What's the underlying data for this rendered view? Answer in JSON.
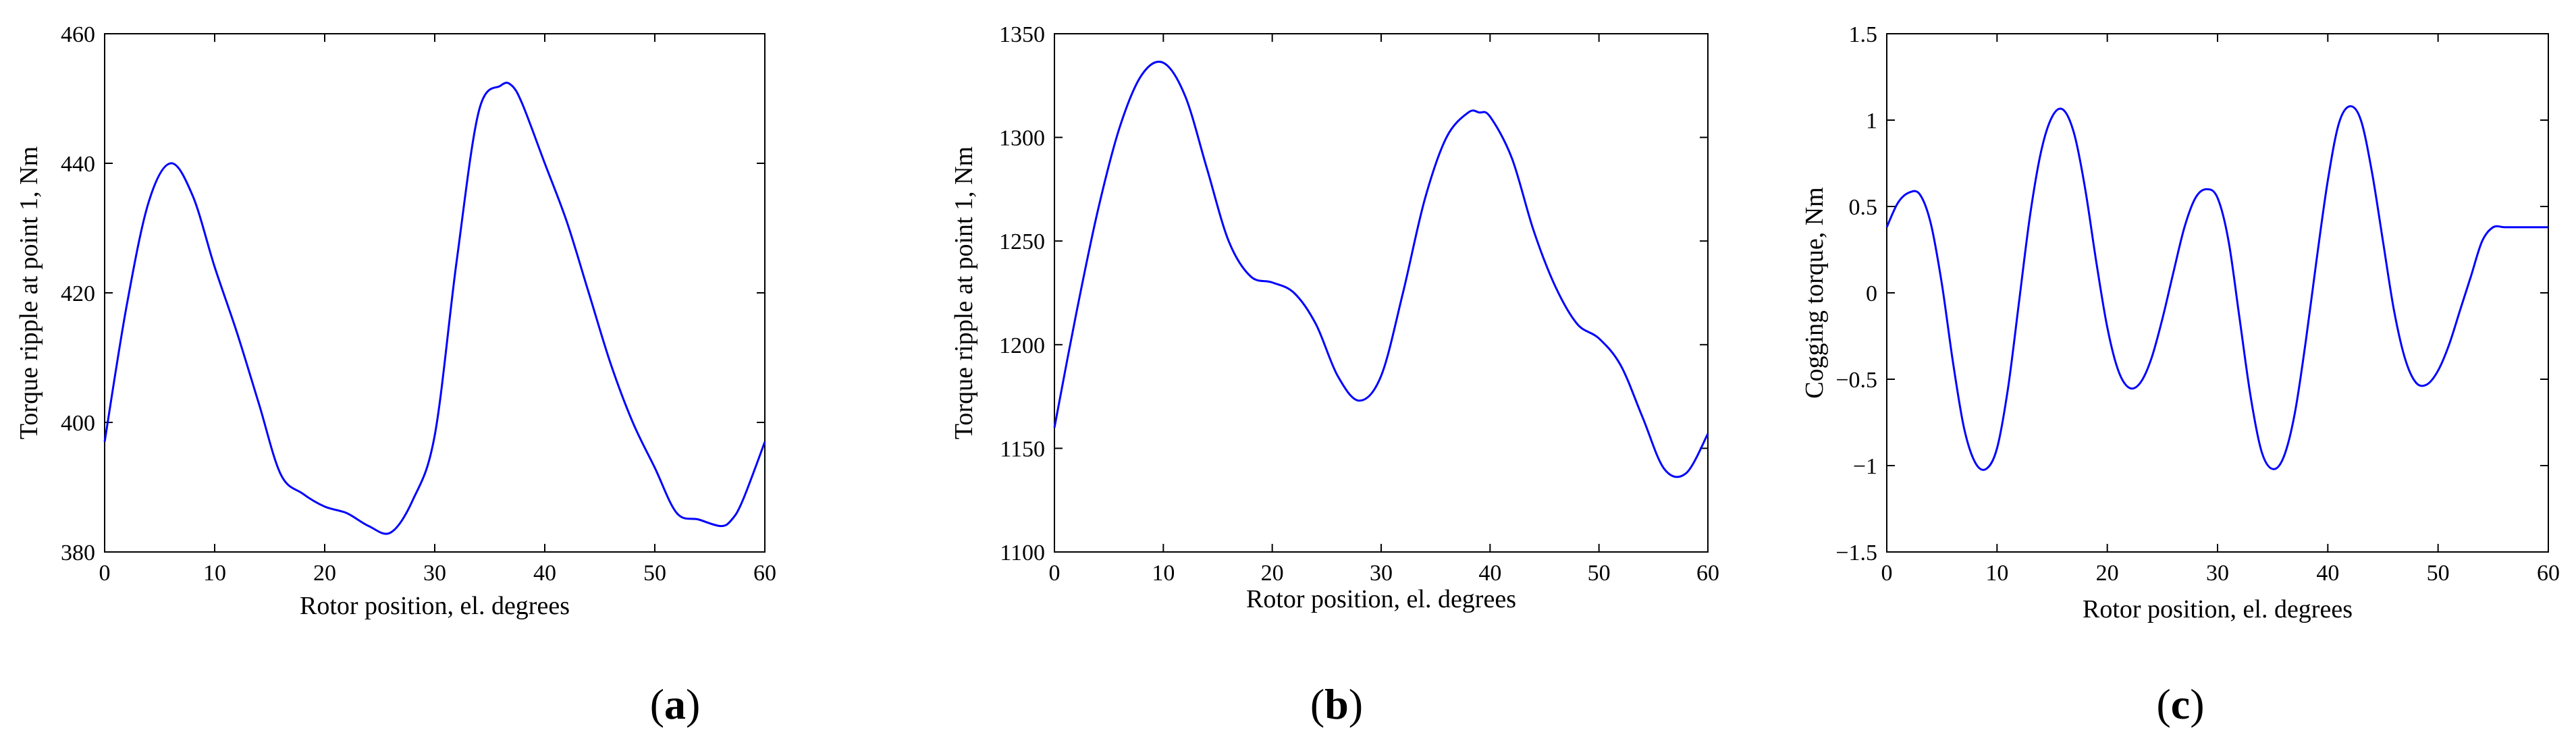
{
  "chart_data": [
    {
      "type": "line",
      "panel_label": "a",
      "title": "",
      "xlabel": "Rotor position, el. degrees",
      "ylabel": "Torque ripple at point 1, Nm",
      "xlim": [
        0,
        60
      ],
      "ylim": [
        380,
        460
      ],
      "xticks": [
        0,
        10,
        20,
        30,
        40,
        50,
        60
      ],
      "yticks": [
        380,
        400,
        420,
        440,
        460
      ],
      "grid": false,
      "color": "#0000ff",
      "series": [
        {
          "name": "Torque ripple",
          "x": [
            0,
            2,
            4,
            6,
            8,
            10,
            12,
            14,
            16,
            18,
            20,
            22,
            24,
            26,
            28,
            30,
            32,
            34,
            36,
            37,
            38,
            40,
            42,
            44,
            46,
            48,
            50,
            52,
            54,
            56,
            57,
            58,
            60
          ],
          "y": [
            397,
            418,
            434,
            440,
            435,
            424,
            414,
            403,
            392,
            389,
            387,
            386,
            384,
            383,
            388,
            398,
            425,
            448,
            452,
            452,
            449,
            440,
            431,
            420,
            409,
            400,
            393,
            386,
            385,
            384,
            385,
            388,
            397
          ]
        }
      ]
    },
    {
      "type": "line",
      "panel_label": "b",
      "title": "",
      "xlabel": "Rotor position, el. degrees",
      "ylabel": "Torque ripple at point 1, Nm",
      "xlim": [
        0,
        60
      ],
      "ylim": [
        1100,
        1350
      ],
      "xticks": [
        0,
        10,
        20,
        30,
        40,
        50,
        60
      ],
      "yticks": [
        1100,
        1150,
        1200,
        1250,
        1300,
        1350
      ],
      "grid": false,
      "color": "#0000ff",
      "series": [
        {
          "name": "Torque ripple",
          "x": [
            0,
            2,
            4,
            6,
            8,
            10,
            12,
            14,
            16,
            18,
            20,
            22,
            24,
            26,
            28,
            30,
            32,
            34,
            36,
            38,
            39,
            40,
            42,
            44,
            46,
            48,
            50,
            52,
            54,
            56,
            58,
            60
          ],
          "y": [
            1160,
            1215,
            1265,
            1305,
            1330,
            1336,
            1320,
            1285,
            1250,
            1233,
            1230,
            1225,
            1210,
            1185,
            1173,
            1185,
            1225,
            1270,
            1300,
            1312,
            1312,
            1310,
            1290,
            1255,
            1228,
            1210,
            1203,
            1190,
            1165,
            1140,
            1138,
            1157
          ]
        }
      ]
    },
    {
      "type": "line",
      "panel_label": "c",
      "title": "",
      "xlabel": "Rotor position, el. degrees",
      "ylabel": "Cogging torque, Nm",
      "xlim": [
        0,
        60
      ],
      "ylim": [
        -1.5,
        1.5
      ],
      "xticks": [
        0,
        10,
        20,
        30,
        40,
        50,
        60
      ],
      "yticks": [
        -1.5,
        -1,
        -0.5,
        0,
        0.5,
        1,
        1.5
      ],
      "ytick_labels": [
        "−1.5",
        "−1",
        "−0.5",
        "0",
        "0.5",
        "1",
        "1.5"
      ],
      "grid": false,
      "color": "#0000ff",
      "series": [
        {
          "name": "Cogging torque",
          "x": [
            0,
            1,
            2,
            3,
            4,
            5,
            6,
            7,
            8,
            9,
            10,
            11,
            12,
            13,
            14,
            15,
            16,
            17,
            18,
            19,
            20,
            21,
            22,
            23,
            24,
            25,
            26,
            27,
            28,
            29,
            30,
            31,
            32,
            33,
            34,
            35,
            36,
            37,
            38,
            39,
            40,
            41,
            42,
            43,
            44,
            45,
            46,
            47,
            48,
            49,
            50,
            51,
            52,
            53,
            54,
            55,
            56,
            57,
            58,
            59,
            60
          ],
          "y": [
            0.38,
            0.52,
            0.58,
            0.57,
            0.4,
            0.05,
            -0.4,
            -0.78,
            -0.98,
            -1.02,
            -0.9,
            -0.55,
            -0.05,
            0.45,
            0.82,
            1.02,
            1.06,
            0.92,
            0.6,
            0.18,
            -0.2,
            -0.45,
            -0.55,
            -0.52,
            -0.38,
            -0.15,
            0.12,
            0.38,
            0.55,
            0.6,
            0.55,
            0.3,
            -0.15,
            -0.6,
            -0.92,
            -1.02,
            -0.95,
            -0.7,
            -0.28,
            0.2,
            0.65,
            0.98,
            1.08,
            1.0,
            0.7,
            0.3,
            -0.1,
            -0.38,
            -0.52,
            -0.53,
            -0.45,
            -0.3,
            -0.1,
            0.1,
            0.3,
            0.38,
            0.38,
            0.38,
            0.38,
            0.38,
            0.38
          ]
        }
      ]
    }
  ]
}
